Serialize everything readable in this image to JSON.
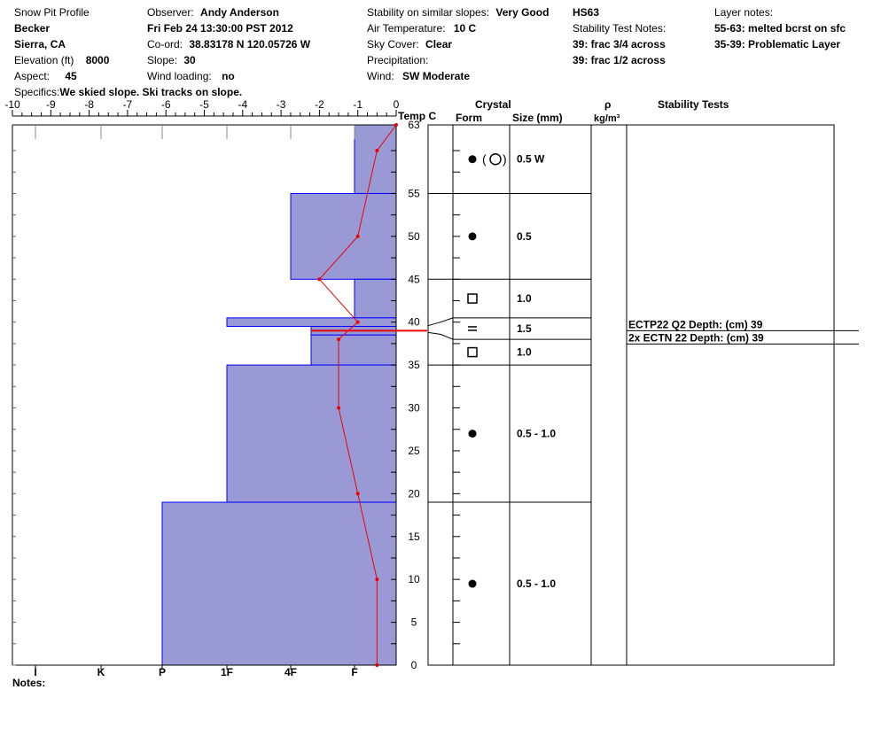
{
  "header": {
    "title": "Snow Pit Profile",
    "location_name": "Becker",
    "region": "Sierra, CA",
    "elevation_label": "Elevation (ft)",
    "elevation_value": "8000",
    "aspect_label": "Aspect:",
    "aspect_value": "45",
    "specifics_label": "Specifics:",
    "specifics_value": "We skied slope. Ski tracks on slope.",
    "observer_label": "Observer:",
    "observer_value": "Andy Anderson",
    "datetime": "Fri Feb 24 13:30:00 PST 2012",
    "coord_label": "Co-ord:",
    "coord_value": "38.83178 N 120.05726 W",
    "slope_label": "Slope:",
    "slope_value": "30",
    "wind_loading_label": "Wind loading:",
    "wind_loading_value": "no",
    "stability_label": "Stability on similar slopes:",
    "stability_value": "Very Good",
    "air_temp_label": "Air Temperature:",
    "air_temp_value": "10 C",
    "sky_label": "Sky Cover:",
    "sky_value": "Clear",
    "precip_label": "Precipitation:",
    "precip_value": "",
    "wind_label": "Wind:",
    "wind_value": "SW Moderate",
    "hs": "HS63",
    "stability_notes_label": "Stability Test Notes:",
    "stability_notes": [
      "39: frac 3/4 across",
      "39: frac 1/2 across"
    ],
    "layer_notes_label": "Layer notes:",
    "layer_notes": [
      "55-63: melted bcrst on sfc",
      "35-39: Problematic Layer"
    ],
    "notes_label": "Notes:"
  },
  "columns": {
    "crystal": "Crystal",
    "form": "Form",
    "size": "Size (mm)",
    "rho": "ρ",
    "density_unit": "kg/m³",
    "stability_tests": "Stability Tests",
    "temp": "Temp C"
  },
  "colors": {
    "hardness_fill": "#9999d6",
    "hardness_edge": "#0000ff",
    "temperature": "#ee0000"
  },
  "chart_data": {
    "type": "area",
    "temp_axis": {
      "ticks": [
        -10,
        -9,
        -8,
        -7,
        -6,
        -5,
        -4,
        -3,
        -2,
        -1,
        0
      ],
      "range": [
        -10,
        0
      ]
    },
    "height_axis": {
      "ticks": [
        0,
        5,
        10,
        15,
        20,
        25,
        30,
        35,
        40,
        45,
        50,
        55,
        63
      ],
      "range": [
        0,
        63
      ]
    },
    "hardness_labels": [
      "I",
      "K",
      "P",
      "1F",
      "4F",
      "F"
    ],
    "hardness_layers": [
      {
        "top": 63,
        "bottom": 55,
        "hardness": "F"
      },
      {
        "top": 55,
        "bottom": 45,
        "hardness": "F-4F"
      },
      {
        "top": 45,
        "bottom": 40.5,
        "hardness": "F"
      },
      {
        "top": 40.5,
        "bottom": 39.5,
        "hardness": "1F"
      },
      {
        "top": 39.5,
        "bottom": 38.5,
        "hardness": "4F-"
      },
      {
        "top": 38.5,
        "bottom": 35,
        "hardness": "4F-"
      },
      {
        "top": 35,
        "bottom": 19,
        "hardness": "1F"
      },
      {
        "top": 19,
        "bottom": 0,
        "hardness": "P"
      }
    ],
    "temperature_profile": [
      {
        "height": 63,
        "temp": 0
      },
      {
        "height": 60,
        "temp": -0.5
      },
      {
        "height": 50,
        "temp": -1
      },
      {
        "height": 45,
        "temp": -2
      },
      {
        "height": 40,
        "temp": -1
      },
      {
        "height": 38,
        "temp": -1.5
      },
      {
        "height": 30,
        "temp": -1.5
      },
      {
        "height": 20,
        "temp": -1
      },
      {
        "height": 10,
        "temp": -0.5
      },
      {
        "height": 0,
        "temp": -0.5
      }
    ],
    "weak_layer_height": 39,
    "crystal_layers": [
      {
        "top": 63,
        "bottom": 55,
        "form_icons": [
          "round",
          "melt-cluster"
        ],
        "size": "0.5 W"
      },
      {
        "top": 55,
        "bottom": 45,
        "form_icons": [
          "round"
        ],
        "size": "0.5"
      },
      {
        "top": 45,
        "bottom": 40.5,
        "form_icons": [
          "facet"
        ],
        "size": "1.0"
      },
      {
        "top": 40.5,
        "bottom": 38,
        "form_icons": [
          "crust"
        ],
        "size": "1.5"
      },
      {
        "top": 38,
        "bottom": 35,
        "form_icons": [
          "facet"
        ],
        "size": "1.0"
      },
      {
        "top": 35,
        "bottom": 19,
        "form_icons": [
          "round"
        ],
        "size": "0.5 - 1.0"
      },
      {
        "top": 19,
        "bottom": 0,
        "form_icons": [
          "round"
        ],
        "size": "0.5 - 1.0"
      }
    ],
    "stability_tests": [
      {
        "text": "ECTP22 Q2 Depth: (cm) 39"
      },
      {
        "text": "2x ECTN 22   Depth: (cm) 39"
      }
    ]
  }
}
